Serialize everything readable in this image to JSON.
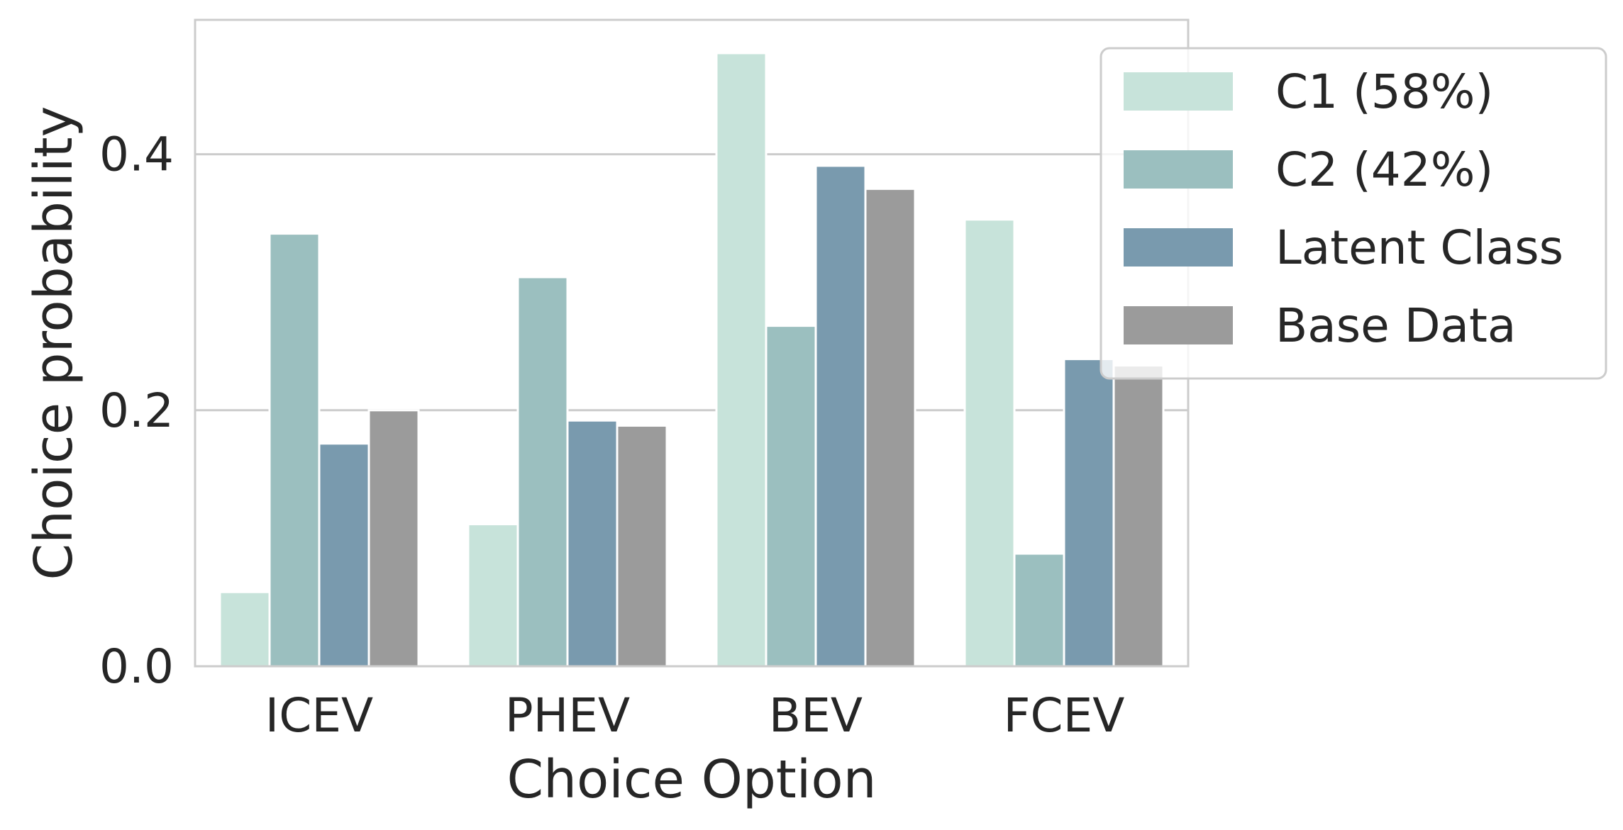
{
  "chart_data": {
    "type": "bar",
    "title": "",
    "xlabel": "Choice Option",
    "ylabel": "Choice probability",
    "categories": [
      "ICEV",
      "PHEV",
      "BEV",
      "FCEV"
    ],
    "series": [
      {
        "name": "C1 (58%)",
        "color": "#c7e3da",
        "values": [
          0.058,
          0.111,
          0.479,
          0.349
        ]
      },
      {
        "name": "C2 (42%)",
        "color": "#9bbfbf",
        "values": [
          0.338,
          0.304,
          0.266,
          0.088
        ]
      },
      {
        "name": "Latent Class",
        "color": "#799aae",
        "values": [
          0.174,
          0.192,
          0.391,
          0.24
        ]
      },
      {
        "name": "Base Data",
        "color": "#9b9b9b",
        "values": [
          0.2,
          0.188,
          0.373,
          0.235
        ]
      }
    ],
    "yticks": [
      0.0,
      0.2,
      0.4
    ],
    "ytick_labels": [
      "0.0",
      "0.2",
      "0.4"
    ],
    "ylim": [
      0,
      0.505
    ],
    "grid": "horizontal",
    "legend_position": "upper-right"
  }
}
